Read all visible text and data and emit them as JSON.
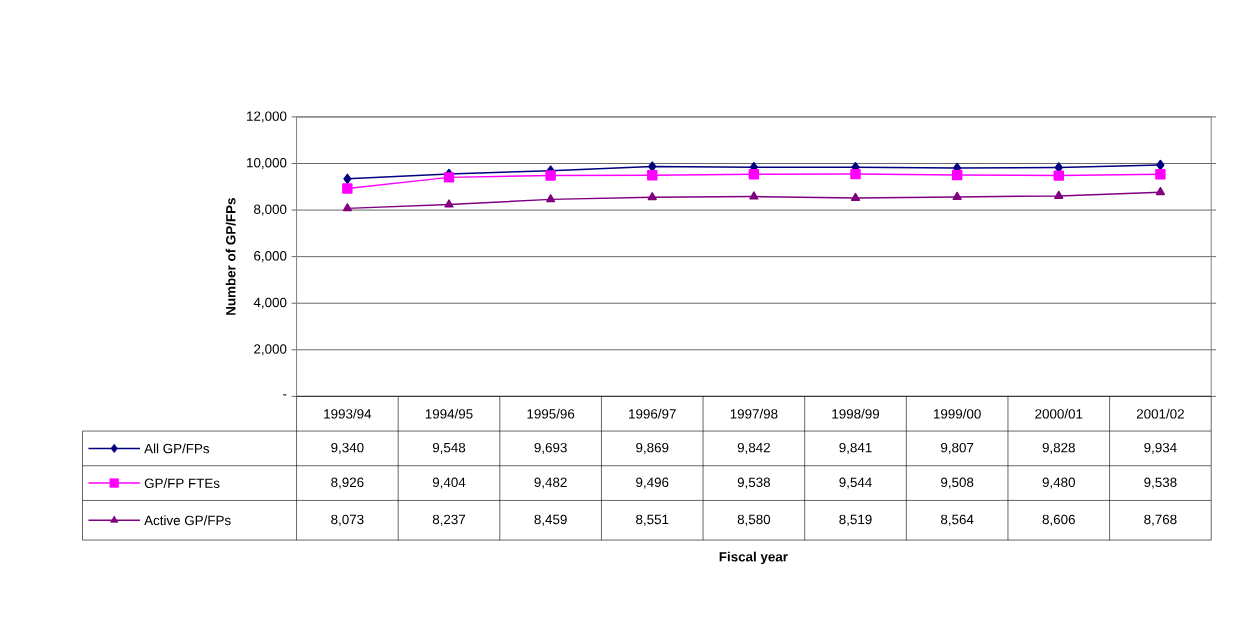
{
  "chart_data": {
    "type": "line",
    "annotations": [
      "Fiscal year"
    ],
    "ylabel": "Number of GP/FPs",
    "categories": [
      "1993/94",
      "1994/95",
      "1995/96",
      "1996/97",
      "1997/98",
      "1998/99",
      "1999/00",
      "2000/01",
      "2001/02"
    ],
    "series": [
      {
        "name": "All GP/FPs",
        "color": "#000080",
        "marker": "diamond",
        "values": [
          9340,
          9548,
          9693,
          9869,
          9842,
          9841,
          9807,
          9828,
          9934
        ],
        "value_labels": [
          "9,340",
          "9,548",
          "9,693",
          "9,869",
          "9,842",
          "9,841",
          "9,807",
          "9,828",
          "9,934"
        ]
      },
      {
        "name": "GP/FP FTEs",
        "color": "#ff00ff",
        "marker": "square",
        "values": [
          8926,
          9404,
          9482,
          9496,
          9538,
          9544,
          9508,
          9480,
          9538
        ],
        "value_labels": [
          "8,926",
          "9,404",
          "9,482",
          "9,496",
          "9,538",
          "9,544",
          "9,508",
          "9,480",
          "9,538"
        ]
      },
      {
        "name": "Active GP/FPs",
        "color": "#800080",
        "marker": "triangle",
        "values": [
          8073,
          8237,
          8459,
          8551,
          8580,
          8519,
          8564,
          8606,
          8768
        ],
        "value_labels": [
          "8,073",
          "8,237",
          "8,459",
          "8,551",
          "8,580",
          "8,519",
          "8,564",
          "8,606",
          "8,768"
        ]
      }
    ],
    "ylim": [
      0,
      12000
    ],
    "yticks": [
      {
        "value": 0,
        "label": "-"
      },
      {
        "value": 2000,
        "label": "2,000"
      },
      {
        "value": 4000,
        "label": "4,000"
      },
      {
        "value": 6000,
        "label": "6,000"
      },
      {
        "value": 8000,
        "label": "8,000"
      },
      {
        "value": 10000,
        "label": "10,000"
      },
      {
        "value": 12000,
        "label": "12,000"
      }
    ],
    "grid": "y",
    "legend": "bottom"
  }
}
